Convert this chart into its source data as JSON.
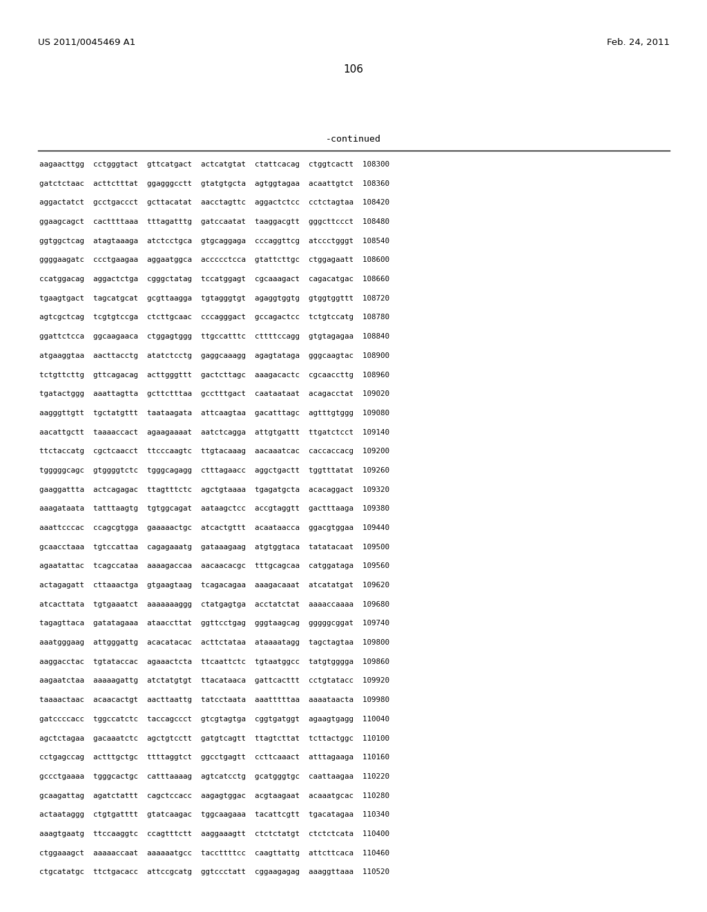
{
  "header_left": "US 2011/0045469 A1",
  "header_right": "Feb. 24, 2011",
  "page_number": "106",
  "continued_label": "-continued",
  "background_color": "#ffffff",
  "text_color": "#000000",
  "font_size_header": 9.5,
  "font_size_page": 11.0,
  "font_size_continued": 9.5,
  "font_size_seq": 7.8,
  "sequence_lines": [
    "aagaacttgg  cctgggtact  gttcatgact  actcatgtat  ctattcacag  ctggtcactt  108300",
    "gatctctaac  acttctttat  ggagggcctt  gtatgtgcta  agtggtagaa  acaattgtct  108360",
    "aggactatct  gcctgaccct  gcttacatat  aacctagttc  aggactctcc  cctctagtaa  108420",
    "ggaagcagct  cacttttaaa  tttagatttg  gatccaatat  taaggacgtt  gggcttccct  108480",
    "ggtggctcag  atagtaaaga  atctcctgca  gtgcaggaga  cccaggttcg  atccctgggt  108540",
    "ggggaagatc  ccctgaagaa  aggaatggca  accccctcca  gtattcttgc  ctggagaatt  108600",
    "ccatggacag  aggactctga  cgggctatag  tccatggagt  cgcaaagact  cagacatgac  108660",
    "tgaagtgact  tagcatgcat  gcgttaagga  tgtagggtgt  agaggtggtg  gtggtggttt  108720",
    "agtcgctcag  tcgtgtccga  ctcttgcaac  cccagggact  gccagactcc  tctgtccatg  108780",
    "ggattctcca  ggcaagaaca  ctggagtggg  ttgccatttc  cttttccagg  gtgtagagaa  108840",
    "atgaaggtaa  aacttacctg  atatctcctg  gaggcaaagg  agagtataga  gggcaagtac  108900",
    "tctgttcttg  gttcagacag  acttgggttt  gactcttagc  aaagacactc  cgcaaccttg  108960",
    "tgatactggg  aaattagtta  gcttctttaa  gcctttgact  caataataat  acagacctat  109020",
    "aagggttgtt  tgctatgttt  taataagata  attcaagtaa  gacatttagc  agtttgtggg  109080",
    "aacattgctt  taaaaccact  agaagaaaat  aatctcagga  attgtgattt  ttgatctcct  109140",
    "ttctaccatg  cgctcaacct  ttcccaagtc  ttgtacaaag  aacaaatcac  caccaccacg  109200",
    "tgggggcagc  gtggggtctc  tgggcagagg  ctttagaacc  aggctgactt  tggtttatat  109260",
    "gaaggattta  actcagagac  ttagtttctc  agctgtaaaa  tgagatgcta  acacaggact  109320",
    "aaagataata  tatttaagtg  tgtggcagat  aataagctcc  accgtaggtt  gactttaaga  109380",
    "aaattcccac  ccagcgtgga  gaaaaactgc  atcactgttt  acaataacca  ggacgtggaa  109440",
    "gcaacctaaa  tgtccattaa  cagagaaatg  gataaagaag  atgtggtaca  tatatacaat  109500",
    "agaatattac  tcagccataa  aaaagaccaa  aacaacacgc  tttgcagcaa  catggataga  109560",
    "actagagatt  cttaaactga  gtgaagtaag  tcagacagaa  aaagacaaat  atcatatgat  109620",
    "atcacttata  tgtgaaatct  aaaaaaaggg  ctatgagtga  acctatctat  aaaaccaaaa  109680",
    "tagagttaca  gatatagaaa  ataaccttat  ggttcctgag  gggtaagcag  gggggcggat  109740",
    "aaatgggaag  attgggattg  acacatacac  acttctataa  ataaaatagg  tagctagtaa  109800",
    "aaggacctac  tgtataccac  agaaactcta  ttcaattctc  tgtaatggcc  tatgtgggga  109860",
    "aagaatctaa  aaaaagattg  atctatgtgt  ttacataaca  gattcacttt  cctgtatacc  109920",
    "taaaactaac  acaacactgt  aacttaattg  tatcctaata  aaatttttaa  aaaataacta  109980",
    "gatccccacc  tggccatctc  taccagccct  gtcgtagtga  cggtgatggt  agaagtgagg  110040",
    "agctctagaa  gacaaatctc  agctgtcctt  gatgtcagtt  ttagtcttat  tcttactggc  110100",
    "cctgagccag  actttgctgc  ttttaggtct  ggcctgagtt  ccttcaaact  atttagaaga  110160",
    "gccctgaaaa  tgggcactgc  catttaaaag  agtcatcctg  gcatgggtgc  caattaagaa  110220",
    "gcaagattag  agatctattt  cagctccacc  aagagtggac  acgtaagaat  acaaatgcac  110280",
    "actaataggg  ctgtgatttt  gtatcaagac  tggcaagaaa  tacattcgtt  tgacatagaa  110340",
    "aaagtgaatg  ttccaaggtc  ccagtttctt  aaggaaagtt  ctctctatgt  ctctctcata  110400",
    "ctggaaagct  aaaaaccaat  aaaaaatgcc  taccttttcc  caagttattg  attcttcaca  110460",
    "ctgcatatgc  ttctgacacc  attccgcatg  ggtccctatt  cggaagagag  aaaggttaaa  110520"
  ]
}
